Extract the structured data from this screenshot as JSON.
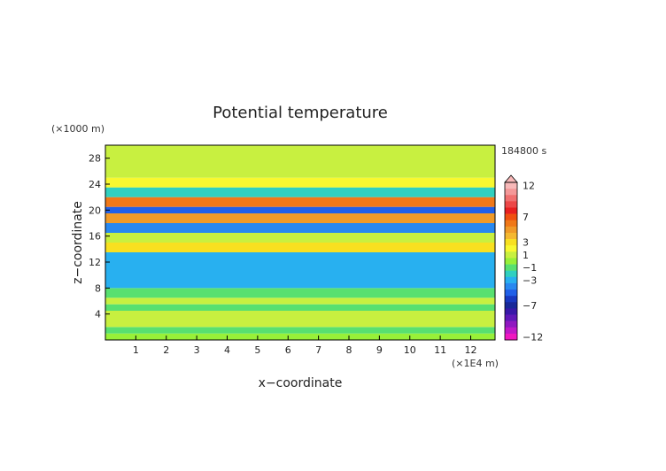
{
  "chart_data": {
    "type": "heatmap",
    "title": "Potential temperature",
    "xlabel": "x−coordinate",
    "ylabel": "z−coordinate",
    "x_unit": "(×1E4 m)",
    "y_unit": "(×1000 m)",
    "time_label": "184800 s",
    "xlim": [
      0,
      12.8
    ],
    "ylim": [
      0,
      30
    ],
    "x_ticks": [
      "1",
      "2",
      "3",
      "4",
      "5",
      "6",
      "7",
      "8",
      "9",
      "10",
      "11",
      "12"
    ],
    "y_ticks": [
      "4",
      "8",
      "12",
      "16",
      "20",
      "24",
      "28"
    ],
    "colorbar": {
      "labels": [
        "12",
        "7",
        "3",
        "1",
        "−1",
        "−3",
        "−7",
        "−12"
      ],
      "levels": [
        12,
        11,
        10,
        9,
        8,
        7,
        6,
        5,
        4,
        3,
        2,
        1,
        0,
        -1,
        -2,
        -3,
        -4,
        -5,
        -6,
        -7,
        -8,
        -9,
        -10,
        -11,
        -12
      ],
      "colors": [
        "#f8b8b8",
        "#f49898",
        "#f07070",
        "#ec4848",
        "#e82020",
        "#f05010",
        "#f07818",
        "#f09a28",
        "#f4b830",
        "#f8e020",
        "#f8f830",
        "#c8f040",
        "#98f038",
        "#58e070",
        "#30d0c0",
        "#28b0f0",
        "#2888f0",
        "#2060e8",
        "#1838c0",
        "#182898",
        "#3818a8",
        "#6018b8",
        "#9018c0",
        "#c018c8",
        "#f018c0"
      ]
    },
    "layers": [
      {
        "z_range": [
          0,
          1.0
        ],
        "value": 0.0,
        "desc": "green band"
      },
      {
        "z_range": [
          1.0,
          2.0
        ],
        "value": -1.5,
        "desc": "cyan/green"
      },
      {
        "z_range": [
          2.0,
          3.0
        ],
        "value": 0.5,
        "desc": "green"
      },
      {
        "z_range": [
          3.0,
          4.5
        ],
        "value": 1.0,
        "desc": "yellow-green"
      },
      {
        "z_range": [
          4.5,
          5.5
        ],
        "value": -1.0,
        "desc": "green"
      },
      {
        "z_range": [
          5.5,
          6.5
        ],
        "value": 1.0,
        "desc": "yellow"
      },
      {
        "z_range": [
          6.5,
          8.0
        ],
        "value": -1.5,
        "desc": "cyan"
      },
      {
        "z_range": [
          8.0,
          13.5
        ],
        "value": -3.0,
        "desc": "blue"
      },
      {
        "z_range": [
          13.5,
          15.0
        ],
        "value": 3.0,
        "desc": "orange"
      },
      {
        "z_range": [
          15.0,
          16.5
        ],
        "value": 0.5,
        "desc": "yellow"
      },
      {
        "z_range": [
          16.5,
          18.0
        ],
        "value": -4.0,
        "desc": "blue"
      },
      {
        "z_range": [
          18.0,
          19.5
        ],
        "value": 5.0,
        "desc": "orange/red"
      },
      {
        "z_range": [
          19.5,
          20.5
        ],
        "value": -5.0,
        "desc": "dark blue"
      },
      {
        "z_range": [
          20.5,
          22.0
        ],
        "value": 6.0,
        "desc": "red"
      },
      {
        "z_range": [
          22.0,
          23.5
        ],
        "value": -2.0,
        "desc": "cyan"
      },
      {
        "z_range": [
          23.5,
          25.0
        ],
        "value": 2.0,
        "desc": "orange/yellow"
      },
      {
        "z_range": [
          25.0,
          27.0
        ],
        "value": 0.5,
        "desc": "yellow"
      },
      {
        "z_range": [
          27.0,
          30.0
        ],
        "value": 1.0,
        "desc": "yellow"
      }
    ],
    "grid": false
  }
}
